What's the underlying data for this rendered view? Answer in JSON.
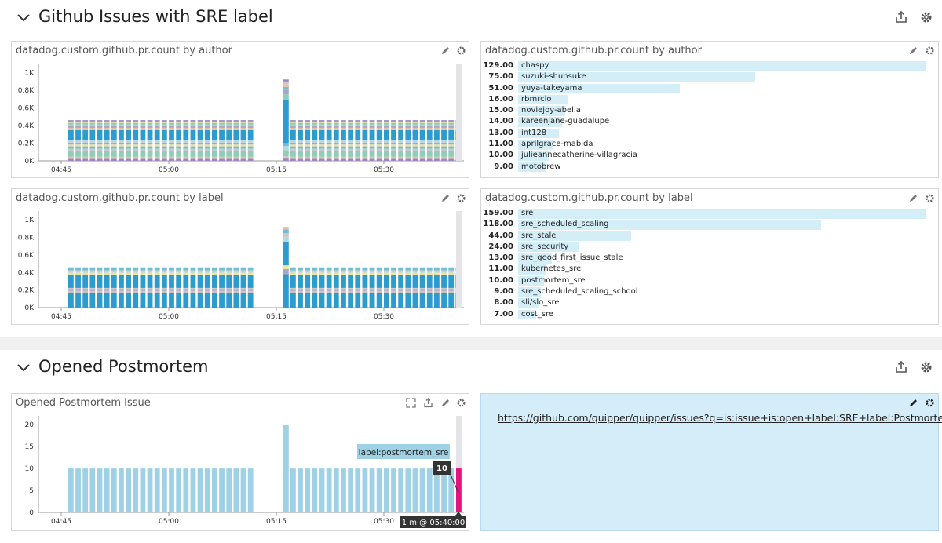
{
  "groups": [
    {
      "title": "Github Issues with SRE label",
      "icons": [
        "chevron-down-icon",
        "share-icon",
        "gear-icon"
      ]
    },
    {
      "title": "Opened Postmortem",
      "icons": [
        "chevron-down-icon",
        "share-icon",
        "gear-icon"
      ]
    }
  ],
  "widgets": {
    "author_ts": {
      "title": "datadog.custom.github.pr.count by author"
    },
    "author_top": {
      "title": "datadog.custom.github.pr.count by author",
      "rows": [
        {
          "value": "129.00",
          "label": "chaspy",
          "num": 129
        },
        {
          "value": "75.00",
          "label": "suzuki-shunsuke",
          "num": 75
        },
        {
          "value": "51.00",
          "label": "yuya-takeyama",
          "num": 51
        },
        {
          "value": "16.00",
          "label": "rbmrclo",
          "num": 16
        },
        {
          "value": "15.00",
          "label": "noviejoy-abella",
          "num": 15
        },
        {
          "value": "14.00",
          "label": "kareenjane-guadalupe",
          "num": 14
        },
        {
          "value": "13.00",
          "label": "int128",
          "num": 13
        },
        {
          "value": "11.00",
          "label": "aprilgrace-mabida",
          "num": 11
        },
        {
          "value": "10.00",
          "label": "julieannecatherine-villagracia",
          "num": 10
        },
        {
          "value": "9.00",
          "label": "motobrew",
          "num": 9
        }
      ]
    },
    "label_ts": {
      "title": "datadog.custom.github.pr.count by label"
    },
    "label_top": {
      "title": "datadog.custom.github.pr.count by label",
      "rows": [
        {
          "value": "159.00",
          "label": "sre",
          "num": 159
        },
        {
          "value": "118.00",
          "label": "sre_scheduled_scaling",
          "num": 118
        },
        {
          "value": "44.00",
          "label": "sre_stale",
          "num": 44
        },
        {
          "value": "24.00",
          "label": "sre_security",
          "num": 24
        },
        {
          "value": "13.00",
          "label": "sre_good_first_issue_stale",
          "num": 13
        },
        {
          "value": "11.00",
          "label": "kubernetes_sre",
          "num": 11
        },
        {
          "value": "10.00",
          "label": "postmortem_sre",
          "num": 10
        },
        {
          "value": "9.00",
          "label": "sre_scheduled_scaling_school",
          "num": 9
        },
        {
          "value": "8.00",
          "label": "sli/slo_sre",
          "num": 8
        },
        {
          "value": "7.00",
          "label": "cost_sre",
          "num": 7
        }
      ]
    },
    "postmortem_ts": {
      "title": "Opened Postmortem Issue",
      "tooltip_label": "label:postmortem_sre",
      "tooltip_value": "10",
      "tooltip_time": "1 m @ 05:40:00"
    },
    "note": {
      "link": "https://github.com/quipper/quipper/issues?q=is:issue+is:open+label:SRE+label:Postmortem"
    }
  },
  "chart_data": [
    {
      "type": "bar",
      "stacked": true,
      "yticks": [
        "1K",
        "0.8K",
        "0.6K",
        "0.4K",
        "0.2K",
        "0K"
      ],
      "xticks": [
        "04:45",
        "05:00",
        "05:15",
        "05:30"
      ],
      "ylim": [
        0,
        1100
      ],
      "typical_total": 460,
      "spike_total": 920
    },
    {
      "type": "bar",
      "stacked": true,
      "yticks": [
        "1K",
        "0.8K",
        "0.6K",
        "0.4K",
        "0.2K",
        "0K"
      ],
      "xticks": [
        "04:45",
        "05:00",
        "05:15",
        "05:30"
      ],
      "ylim": [
        0,
        1100
      ],
      "typical_total": 460,
      "spike_total": 920
    },
    {
      "type": "bar",
      "yticks": [
        "20",
        "15",
        "10",
        "5",
        "0"
      ],
      "xticks": [
        "04:45",
        "05:00",
        "05:15",
        "05:30"
      ],
      "ylim": [
        0,
        22
      ],
      "typical_value": 10,
      "spike_value": 20,
      "highlight_value": 10,
      "series": [
        {
          "name": "label:postmortem_sre"
        }
      ]
    }
  ],
  "colors": {
    "bar_blue": "#2c9ccf",
    "bar_light": "#9fd1e6",
    "highlight": "#e8117f",
    "note_bg": "#d5ecf9"
  }
}
